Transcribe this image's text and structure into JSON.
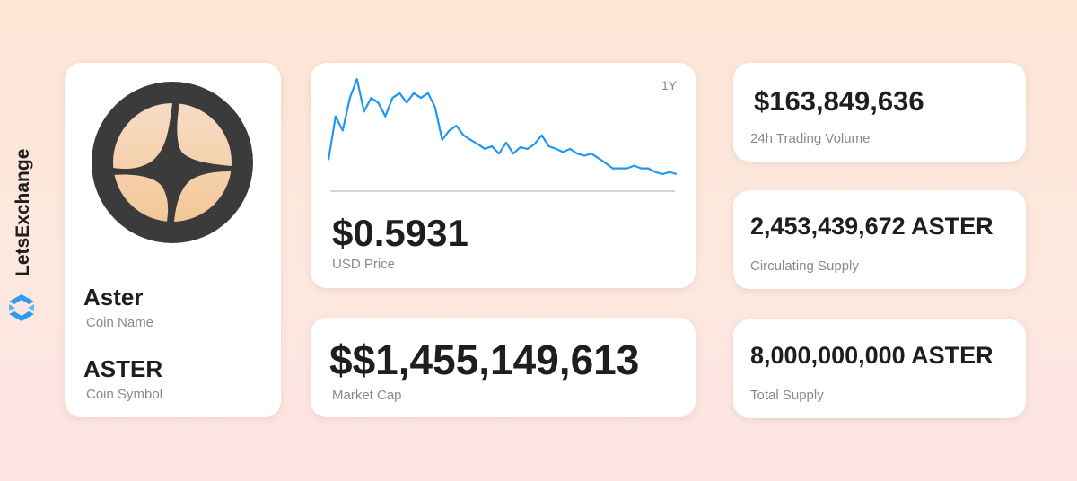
{
  "brand": "LetsExchange",
  "coin": {
    "name": "Aster",
    "name_label": "Coin Name",
    "symbol": "ASTER",
    "symbol_label": "Coin Symbol"
  },
  "price_chart": {
    "period": "1Y",
    "values": [
      0.86,
      1.69,
      1.42,
      2.04,
      2.4,
      1.78,
      2.04,
      1.95,
      1.69,
      2.04,
      2.13,
      1.95,
      2.13,
      2.04,
      2.13,
      1.86,
      1.24,
      1.42,
      1.51,
      1.33,
      1.24,
      1.16,
      1.07,
      1.12,
      0.98,
      1.19,
      0.98,
      1.1,
      1.07,
      1.16,
      1.33,
      1.12,
      1.07,
      1.01,
      1.07,
      0.98,
      0.94,
      0.98,
      0.89,
      0.8,
      0.7,
      0.7,
      0.7,
      0.75,
      0.7,
      0.7,
      0.63,
      0.59,
      0.63,
      0.59
    ]
  },
  "price": {
    "value": "$0.5931",
    "label": "USD Price"
  },
  "market_cap": {
    "value": "$$1,455,149,613",
    "label": "Market Cap"
  },
  "stats": [
    {
      "value": "$163,849,636",
      "label": "24h Trading Volume"
    },
    {
      "value": "2,453,439,672 ASTER",
      "label": "Circulating Supply"
    },
    {
      "value": "8,000,000,000 ASTER",
      "label": "Total Supply"
    }
  ]
}
